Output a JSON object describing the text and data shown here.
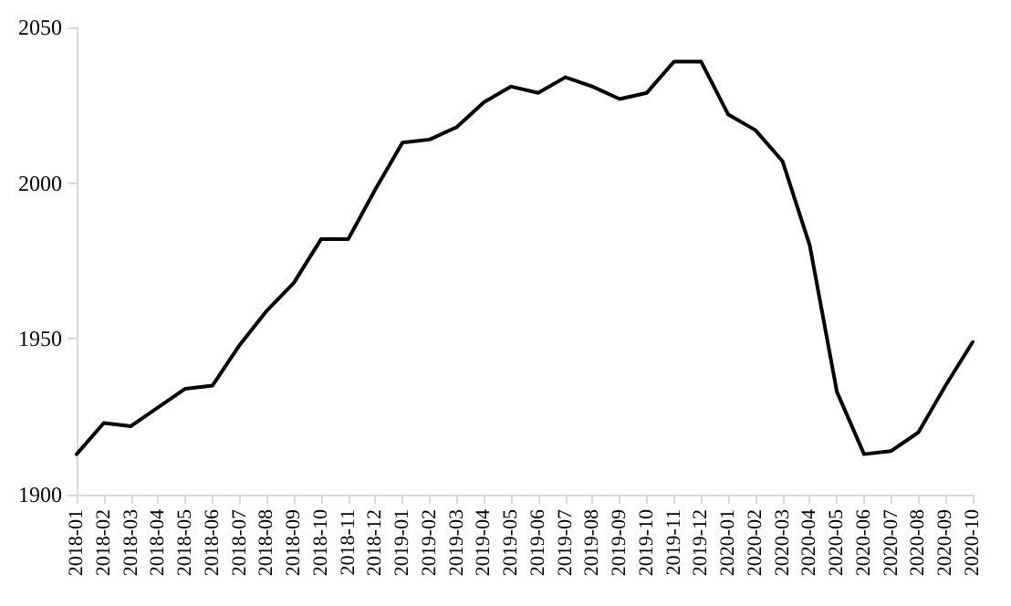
{
  "chart_data": {
    "type": "line",
    "categories": [
      "2018-01",
      "2018-02",
      "2018-03",
      "2018-04",
      "2018-05",
      "2018-06",
      "2018-07",
      "2018-08",
      "2018-09",
      "2018-10",
      "2018-11",
      "2018-12",
      "2019-01",
      "2019-02",
      "2019-03",
      "2019-04",
      "2019-05",
      "2019-06",
      "2019-07",
      "2019-08",
      "2019-09",
      "2019-10",
      "2019-11",
      "2019-12",
      "2020-01",
      "2020-02",
      "2020-03",
      "2020-04",
      "2020-05",
      "2020-06",
      "2020-07",
      "2020-08",
      "2020-09",
      "2020-10"
    ],
    "series": [
      {
        "color": "#000000",
        "values": [
          1913,
          1923,
          1922,
          1928,
          1934,
          1935,
          1948,
          1959,
          1968,
          1982,
          1982,
          1998,
          2013,
          2014,
          2018,
          2026,
          2031,
          2029,
          2034,
          2031,
          2027,
          2029,
          2039,
          2039,
          2022,
          2017,
          2007,
          1980,
          1933,
          1913,
          1914,
          1920,
          1935,
          1949
        ]
      }
    ],
    "ylim": [
      1900,
      2050
    ],
    "yticks": [
      1900,
      1950,
      2000,
      2050
    ],
    "grid": false,
    "marker": "none",
    "line_style": "solid"
  }
}
